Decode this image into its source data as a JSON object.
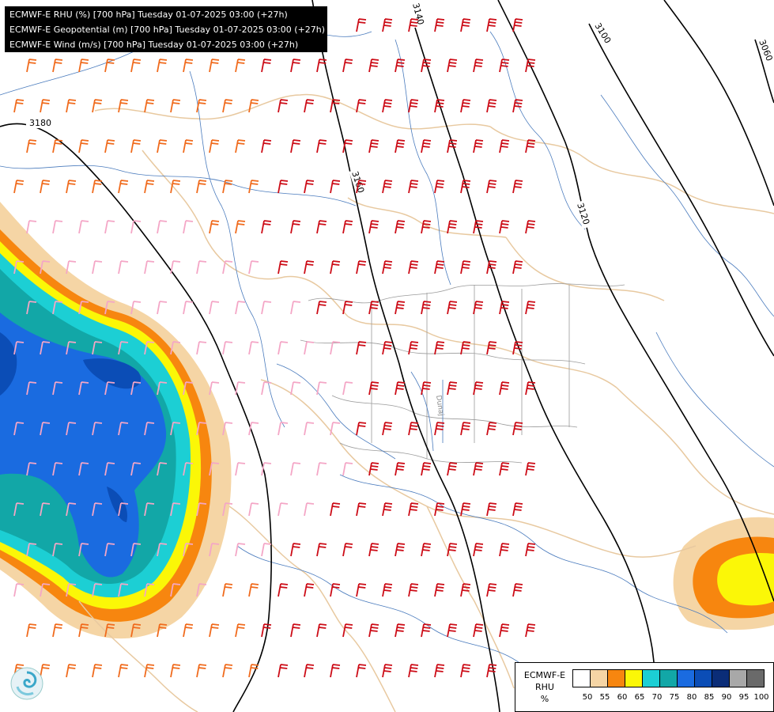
{
  "header": {
    "lines": [
      "ECMWF-E RHU (%) [700 hPa] Tuesday 01-07-2025 03:00 (+27h)",
      "ECMWF-E Geopotential (m) [700 hPa] Tuesday 01-07-2025 03:00 (+27h)",
      "ECMWF-E Wind (m/s) [700 hPa] Tuesday 01-07-2025 03:00 (+27h)"
    ]
  },
  "map": {
    "contour_labels": [
      "3180",
      "3160",
      "3140",
      "3120",
      "3100",
      "3060"
    ],
    "river_label": "Dunaj",
    "colors": {
      "contour": "#000000",
      "rivers": "#4a7bbd",
      "borders": "#e8c9a0",
      "wind_weak": "#f4a6c6",
      "wind_medium": "#f06a1c",
      "wind_strong": "#cc0b16"
    }
  },
  "legend": {
    "title": [
      "ECMWF-E",
      "RHU",
      "%"
    ],
    "levels": [
      {
        "label": "50",
        "color": "#ffffff"
      },
      {
        "label": "55",
        "color": "#f5d5a5"
      },
      {
        "label": "60",
        "color": "#f7860f"
      },
      {
        "label": "65",
        "color": "#fbf707"
      },
      {
        "label": "70",
        "color": "#1ccfd4"
      },
      {
        "label": "75",
        "color": "#12a7a7"
      },
      {
        "label": "80",
        "color": "#1a6be0"
      },
      {
        "label": "85",
        "color": "#0b4db6"
      },
      {
        "label": "90",
        "color": "#0b2d78"
      },
      {
        "label": "95",
        "color": "#a8a8a8"
      },
      {
        "label": "100",
        "color": "#6a6a6a"
      }
    ]
  },
  "logo": {
    "icon": "ecmwf-swirl-logo"
  }
}
